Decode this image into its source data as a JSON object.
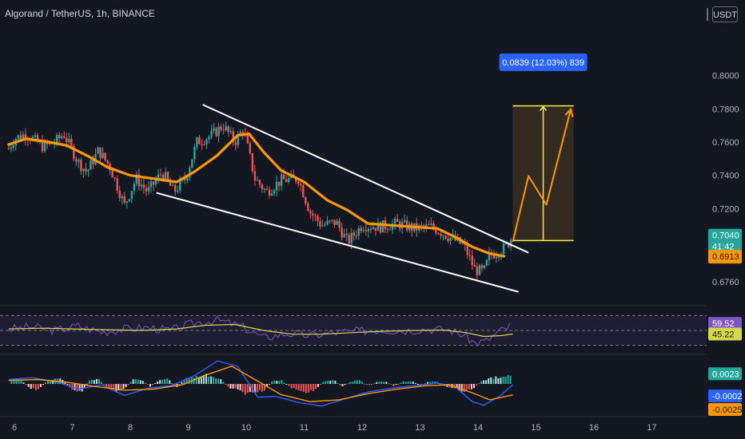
{
  "header": {
    "symbol_line": "Algorand / TetherUS, 1h, BINANCE",
    "currency_label": "USDT"
  },
  "colors": {
    "background": "#131722",
    "up": "#26a69a",
    "down": "#ef5350",
    "ma": "#ff9800",
    "trendline": "#ffffff",
    "rsi": "#7e57c2",
    "rsi_signal": "#d4d94a",
    "macd": "#2962ff",
    "macd_signal": "#ff9800",
    "target_box": "#3a2f21",
    "target_line": "#ffeb3b",
    "measure_label": "#2962ff"
  },
  "chart_data": {
    "type": "candlestick",
    "title": "Algorand / TetherUS, 1h, BINANCE",
    "x_axis": {
      "tick_labels": [
        "6",
        "7",
        "8",
        "9",
        "10",
        "11",
        "12",
        "13",
        "14",
        "15",
        "16",
        "17"
      ]
    },
    "price_axis": {
      "tick_labels": [
        "0.8000",
        "0.7800",
        "0.7600",
        "0.7400",
        "0.7200",
        "0.6760"
      ],
      "ylim": [
        0.664,
        0.832
      ]
    },
    "close_path": [
      {
        "day": 5.9,
        "price": 0.756
      },
      {
        "day": 6.0,
        "price": 0.762
      },
      {
        "day": 6.2,
        "price": 0.765
      },
      {
        "day": 6.5,
        "price": 0.757
      },
      {
        "day": 6.7,
        "price": 0.76
      },
      {
        "day": 6.85,
        "price": 0.765
      },
      {
        "day": 7.1,
        "price": 0.748
      },
      {
        "day": 7.25,
        "price": 0.742
      },
      {
        "day": 7.45,
        "price": 0.755
      },
      {
        "day": 7.65,
        "price": 0.745
      },
      {
        "day": 7.9,
        "price": 0.722
      },
      {
        "day": 8.1,
        "price": 0.738
      },
      {
        "day": 8.3,
        "price": 0.73
      },
      {
        "day": 8.55,
        "price": 0.742
      },
      {
        "day": 8.75,
        "price": 0.73
      },
      {
        "day": 8.95,
        "price": 0.738
      },
      {
        "day": 9.15,
        "price": 0.76
      },
      {
        "day": 9.4,
        "price": 0.764
      },
      {
        "day": 9.6,
        "price": 0.77
      },
      {
        "day": 9.8,
        "price": 0.76
      },
      {
        "day": 9.95,
        "price": 0.768
      },
      {
        "day": 10.15,
        "price": 0.738
      },
      {
        "day": 10.35,
        "price": 0.73
      },
      {
        "day": 10.6,
        "price": 0.737
      },
      {
        "day": 10.9,
        "price": 0.738
      },
      {
        "day": 11.1,
        "price": 0.718
      },
      {
        "day": 11.3,
        "price": 0.71
      },
      {
        "day": 11.55,
        "price": 0.712
      },
      {
        "day": 11.75,
        "price": 0.7
      },
      {
        "day": 12.0,
        "price": 0.71
      },
      {
        "day": 12.3,
        "price": 0.709
      },
      {
        "day": 12.6,
        "price": 0.711
      },
      {
        "day": 12.9,
        "price": 0.708
      },
      {
        "day": 13.2,
        "price": 0.709
      },
      {
        "day": 13.5,
        "price": 0.703
      },
      {
        "day": 13.75,
        "price": 0.698
      },
      {
        "day": 13.95,
        "price": 0.683
      },
      {
        "day": 14.1,
        "price": 0.682
      },
      {
        "day": 14.2,
        "price": 0.692
      },
      {
        "day": 14.35,
        "price": 0.694
      },
      {
        "day": 14.5,
        "price": 0.698
      },
      {
        "day": 14.6,
        "price": 0.704
      }
    ],
    "moving_average": [
      {
        "day": 5.9,
        "price": 0.7585
      },
      {
        "day": 6.2,
        "price": 0.762
      },
      {
        "day": 6.6,
        "price": 0.76
      },
      {
        "day": 6.9,
        "price": 0.758
      },
      {
        "day": 7.3,
        "price": 0.751
      },
      {
        "day": 7.6,
        "price": 0.745
      },
      {
        "day": 8.0,
        "price": 0.74
      },
      {
        "day": 8.4,
        "price": 0.738
      },
      {
        "day": 8.8,
        "price": 0.736
      },
      {
        "day": 9.1,
        "price": 0.742
      },
      {
        "day": 9.5,
        "price": 0.752
      },
      {
        "day": 9.85,
        "price": 0.764
      },
      {
        "day": 10.05,
        "price": 0.765
      },
      {
        "day": 10.3,
        "price": 0.754
      },
      {
        "day": 10.6,
        "price": 0.743
      },
      {
        "day": 11.0,
        "price": 0.736
      },
      {
        "day": 11.4,
        "price": 0.725
      },
      {
        "day": 11.75,
        "price": 0.719
      },
      {
        "day": 12.1,
        "price": 0.711
      },
      {
        "day": 12.5,
        "price": 0.71
      },
      {
        "day": 12.9,
        "price": 0.709
      },
      {
        "day": 13.3,
        "price": 0.708
      },
      {
        "day": 13.6,
        "price": 0.703
      },
      {
        "day": 13.9,
        "price": 0.697
      },
      {
        "day": 14.2,
        "price": 0.693
      },
      {
        "day": 14.45,
        "price": 0.6913
      }
    ],
    "trendlines": [
      {
        "name": "upper",
        "from": {
          "day": 9.25,
          "price": 0.7825
        },
        "to": {
          "day": 14.87,
          "price": 0.6935
        }
      },
      {
        "name": "lower",
        "from": {
          "day": 8.45,
          "price": 0.7295
        },
        "to": {
          "day": 14.7,
          "price": 0.6699
        }
      }
    ],
    "projection_path": [
      {
        "day": 14.6,
        "price": 0.7
      },
      {
        "day": 14.87,
        "price": 0.7396
      },
      {
        "day": 15.18,
        "price": 0.7223
      },
      {
        "day": 15.6,
        "price": 0.7797
      }
    ],
    "target_box": {
      "x_from": 14.6,
      "x_to": 15.65,
      "low": 0.7008,
      "high": 0.7818
    },
    "measure_label": "0.0839 (12.03%) 839",
    "price_badges": [
      {
        "label": "0.7040",
        "sub": "41:42",
        "kind": "last"
      },
      {
        "label": "0.6913",
        "kind": "ma"
      }
    ],
    "rsi": {
      "badges": [
        "59.52",
        "45.22"
      ],
      "ylim": [
        20,
        80
      ],
      "band": [
        30,
        70
      ],
      "midline": 50,
      "rsi_path": [
        {
          "day": 5.9,
          "value": 52
        },
        {
          "day": 6.3,
          "value": 55
        },
        {
          "day": 6.7,
          "value": 50
        },
        {
          "day": 7.1,
          "value": 56
        },
        {
          "day": 7.5,
          "value": 48
        },
        {
          "day": 7.9,
          "value": 52
        },
        {
          "day": 8.3,
          "value": 54
        },
        {
          "day": 8.7,
          "value": 50
        },
        {
          "day": 9.1,
          "value": 60
        },
        {
          "day": 9.5,
          "value": 64
        },
        {
          "day": 9.9,
          "value": 56
        },
        {
          "day": 10.3,
          "value": 40
        },
        {
          "day": 10.7,
          "value": 46
        },
        {
          "day": 11.1,
          "value": 43
        },
        {
          "day": 11.5,
          "value": 47
        },
        {
          "day": 11.9,
          "value": 49
        },
        {
          "day": 12.3,
          "value": 51
        },
        {
          "day": 12.7,
          "value": 50
        },
        {
          "day": 13.1,
          "value": 52
        },
        {
          "day": 13.5,
          "value": 51
        },
        {
          "day": 13.75,
          "value": 44
        },
        {
          "day": 13.95,
          "value": 33
        },
        {
          "day": 14.15,
          "value": 36
        },
        {
          "day": 14.35,
          "value": 48
        },
        {
          "day": 14.5,
          "value": 53
        },
        {
          "day": 14.6,
          "value": 59.52
        }
      ],
      "signal_path": [
        {
          "day": 5.9,
          "value": 52
        },
        {
          "day": 6.5,
          "value": 53
        },
        {
          "day": 7.0,
          "value": 52
        },
        {
          "day": 7.6,
          "value": 51
        },
        {
          "day": 8.2,
          "value": 50
        },
        {
          "day": 8.8,
          "value": 52
        },
        {
          "day": 9.3,
          "value": 57
        },
        {
          "day": 9.8,
          "value": 58
        },
        {
          "day": 10.3,
          "value": 50
        },
        {
          "day": 10.8,
          "value": 45
        },
        {
          "day": 11.3,
          "value": 45
        },
        {
          "day": 11.8,
          "value": 47
        },
        {
          "day": 12.4,
          "value": 49
        },
        {
          "day": 12.9,
          "value": 50
        },
        {
          "day": 13.4,
          "value": 50.5
        },
        {
          "day": 13.8,
          "value": 47
        },
        {
          "day": 14.1,
          "value": 42
        },
        {
          "day": 14.4,
          "value": 43
        },
        {
          "day": 14.6,
          "value": 45.22
        }
      ]
    },
    "macd": {
      "badges": [
        "0.0023",
        "-0.0002",
        "-0.0025"
      ],
      "ylim": [
        -0.0065,
        0.0065
      ],
      "histogram": [
        {
          "day": 5.95,
          "value": 0.0008
        },
        {
          "day": 6.1,
          "value": 0.0011
        },
        {
          "day": 6.25,
          "value": -0.0009
        },
        {
          "day": 6.4,
          "value": -0.0014
        },
        {
          "day": 6.55,
          "value": 0.0006
        },
        {
          "day": 6.7,
          "value": 0.0013
        },
        {
          "day": 6.85,
          "value": 0.001
        },
        {
          "day": 7.0,
          "value": -0.0015
        },
        {
          "day": 7.15,
          "value": -0.0018
        },
        {
          "day": 7.3,
          "value": 0.0009
        },
        {
          "day": 7.45,
          "value": 0.0012
        },
        {
          "day": 7.6,
          "value": -0.001
        },
        {
          "day": 7.75,
          "value": -0.0016
        },
        {
          "day": 7.9,
          "value": -0.0012
        },
        {
          "day": 8.05,
          "value": 0.001
        },
        {
          "day": 8.2,
          "value": 0.0008
        },
        {
          "day": 8.35,
          "value": -0.0006
        },
        {
          "day": 8.5,
          "value": 0.0009
        },
        {
          "day": 8.65,
          "value": 0.0011
        },
        {
          "day": 8.8,
          "value": -0.0008
        },
        {
          "day": 8.95,
          "value": 0.0013
        },
        {
          "day": 9.1,
          "value": 0.0016
        },
        {
          "day": 9.25,
          "value": 0.002
        },
        {
          "day": 9.4,
          "value": 0.0018
        },
        {
          "day": 9.55,
          "value": 0.0011
        },
        {
          "day": 9.7,
          "value": -0.0008
        },
        {
          "day": 9.85,
          "value": -0.0014
        },
        {
          "day": 10.0,
          "value": -0.0022
        },
        {
          "day": 10.15,
          "value": -0.002
        },
        {
          "day": 10.3,
          "value": -0.0015
        },
        {
          "day": 10.45,
          "value": 0.0006
        },
        {
          "day": 10.6,
          "value": 0.0009
        },
        {
          "day": 10.75,
          "value": -0.0007
        },
        {
          "day": 10.9,
          "value": -0.0016
        },
        {
          "day": 11.05,
          "value": -0.0019
        },
        {
          "day": 11.2,
          "value": -0.0012
        },
        {
          "day": 11.35,
          "value": 0.0007
        },
        {
          "day": 11.5,
          "value": 0.001
        },
        {
          "day": 11.65,
          "value": -0.0006
        },
        {
          "day": 11.8,
          "value": 0.0005
        },
        {
          "day": 11.95,
          "value": 0.0008
        },
        {
          "day": 12.1,
          "value": -0.0004
        },
        {
          "day": 12.25,
          "value": 0.0004
        },
        {
          "day": 12.4,
          "value": 0.0006
        },
        {
          "day": 12.55,
          "value": -0.0005
        },
        {
          "day": 12.7,
          "value": 0.0005
        },
        {
          "day": 12.85,
          "value": 0.0007
        },
        {
          "day": 13.0,
          "value": -0.0004
        },
        {
          "day": 13.15,
          "value": 0.0005
        },
        {
          "day": 13.3,
          "value": 0.0004
        },
        {
          "day": 13.45,
          "value": -0.0006
        },
        {
          "day": 13.6,
          "value": -0.001
        },
        {
          "day": 13.75,
          "value": -0.0016
        },
        {
          "day": 13.9,
          "value": -0.0012
        },
        {
          "day": 14.05,
          "value": 0.0006
        },
        {
          "day": 14.2,
          "value": 0.0012
        },
        {
          "day": 14.35,
          "value": 0.0016
        },
        {
          "day": 14.5,
          "value": 0.002
        },
        {
          "day": 14.6,
          "value": 0.0023
        }
      ],
      "macd_path": [
        {
          "day": 5.9,
          "value": 0.001
        },
        {
          "day": 6.3,
          "value": 0.0014
        },
        {
          "day": 6.7,
          "value": 0.0006
        },
        {
          "day": 7.1,
          "value": -0.0012
        },
        {
          "day": 7.5,
          "value": -0.0002
        },
        {
          "day": 7.9,
          "value": -0.0026
        },
        {
          "day": 8.3,
          "value": -0.001
        },
        {
          "day": 8.7,
          "value": -0.0004
        },
        {
          "day": 9.1,
          "value": 0.0018
        },
        {
          "day": 9.5,
          "value": 0.0052
        },
        {
          "day": 9.85,
          "value": 0.004
        },
        {
          "day": 10.2,
          "value": -0.003
        },
        {
          "day": 10.5,
          "value": -0.0028
        },
        {
          "day": 10.9,
          "value": -0.0042
        },
        {
          "day": 11.3,
          "value": -0.005
        },
        {
          "day": 11.7,
          "value": -0.0034
        },
        {
          "day": 12.1,
          "value": -0.0018
        },
        {
          "day": 12.5,
          "value": -0.001
        },
        {
          "day": 12.9,
          "value": -0.0004
        },
        {
          "day": 13.3,
          "value": 0.0002
        },
        {
          "day": 13.6,
          "value": -0.0006
        },
        {
          "day": 13.9,
          "value": -0.004
        },
        {
          "day": 14.1,
          "value": -0.0048
        },
        {
          "day": 14.35,
          "value": -0.003
        },
        {
          "day": 14.6,
          "value": -0.0002
        }
      ],
      "signal_path": [
        {
          "day": 5.9,
          "value": 0.0008
        },
        {
          "day": 6.4,
          "value": 0.001
        },
        {
          "day": 6.9,
          "value": 0.0004
        },
        {
          "day": 7.4,
          "value": -0.0006
        },
        {
          "day": 7.9,
          "value": -0.0014
        },
        {
          "day": 8.4,
          "value": -0.0012
        },
        {
          "day": 8.9,
          "value": -0.0002
        },
        {
          "day": 9.3,
          "value": 0.002
        },
        {
          "day": 9.75,
          "value": 0.004
        },
        {
          "day": 10.15,
          "value": 0.001
        },
        {
          "day": 10.6,
          "value": -0.0024
        },
        {
          "day": 11.1,
          "value": -0.004
        },
        {
          "day": 11.6,
          "value": -0.0036
        },
        {
          "day": 12.1,
          "value": -0.0022
        },
        {
          "day": 12.6,
          "value": -0.0012
        },
        {
          "day": 13.1,
          "value": -0.0004
        },
        {
          "day": 13.5,
          "value": -0.0002
        },
        {
          "day": 13.9,
          "value": -0.002
        },
        {
          "day": 14.2,
          "value": -0.0036
        },
        {
          "day": 14.6,
          "value": -0.0025
        }
      ]
    }
  }
}
